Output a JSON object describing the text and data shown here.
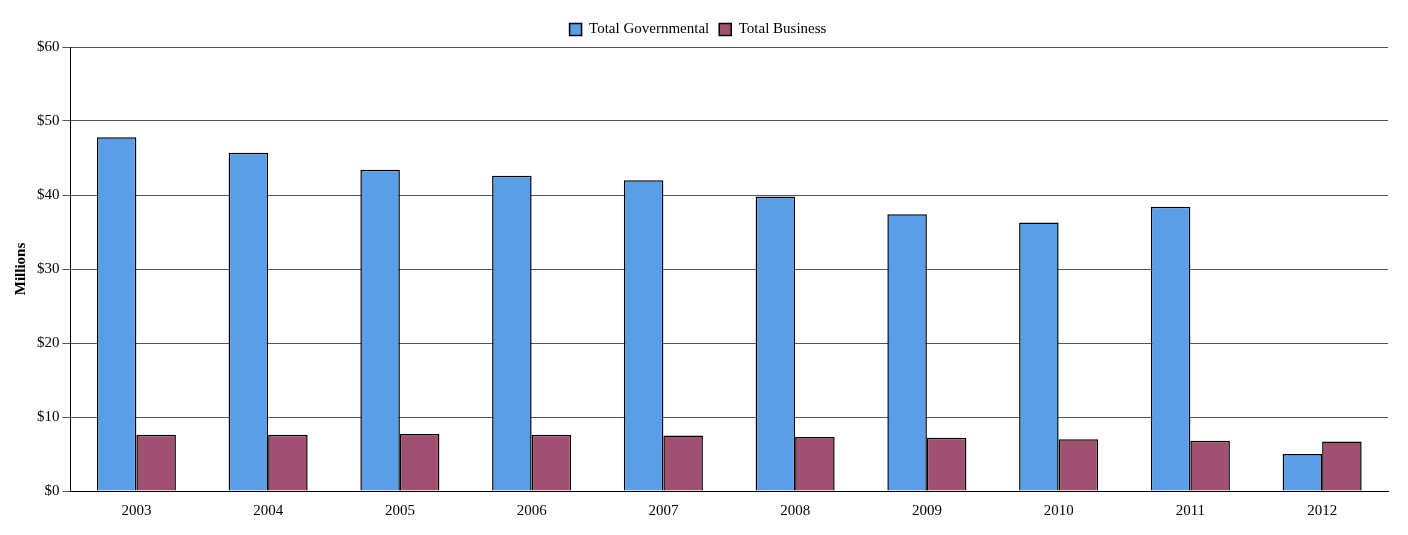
{
  "chart_data": {
    "type": "bar",
    "ylabel": "Millions",
    "categories": [
      "2003",
      "2004",
      "2005",
      "2006",
      "2007",
      "2008",
      "2009",
      "2010",
      "2011",
      "2012"
    ],
    "series": [
      {
        "name": "Total Governmental",
        "color": "#5b9ee8",
        "values": [
          47.8,
          45.7,
          43.4,
          42.6,
          42.0,
          39.8,
          37.4,
          36.3,
          38.4,
          5.0
        ]
      },
      {
        "name": "Total Business",
        "color": "#a05070",
        "values": [
          7.6,
          7.6,
          7.7,
          7.6,
          7.5,
          7.3,
          7.2,
          7.0,
          6.8,
          6.7
        ]
      }
    ],
    "ylim": [
      0,
      60
    ],
    "yticks": [
      {
        "value": 0,
        "label": "$0"
      },
      {
        "value": 10,
        "label": "$10"
      },
      {
        "value": 20,
        "label": "$20"
      },
      {
        "value": 30,
        "label": "$30"
      },
      {
        "value": 40,
        "label": "$40"
      },
      {
        "value": 50,
        "label": "$50"
      },
      {
        "value": 60,
        "label": "$60"
      }
    ],
    "grid": "y",
    "legend": "top"
  }
}
